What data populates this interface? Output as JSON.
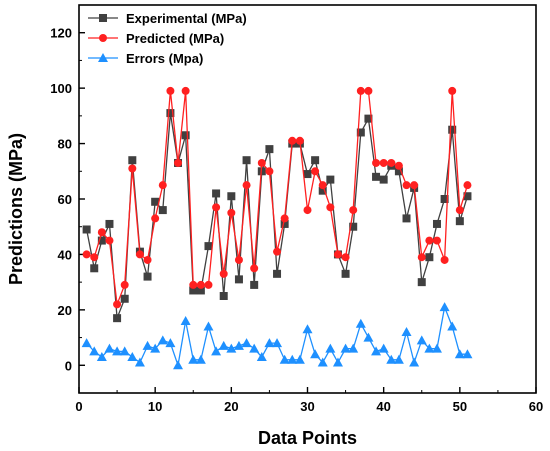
{
  "chart_data": {
    "type": "line",
    "xlabel": "Data Points",
    "ylabel": "Predictions (MPa)",
    "xlim": [
      0,
      60
    ],
    "ylim": [
      -10,
      130
    ],
    "xticks": [
      0,
      10,
      20,
      30,
      40,
      50,
      60
    ],
    "yticks": [
      0,
      20,
      40,
      60,
      80,
      100,
      120
    ],
    "grid": false,
    "legend_position": "top-left",
    "x": [
      1,
      2,
      3,
      4,
      5,
      6,
      7,
      8,
      9,
      10,
      11,
      12,
      13,
      14,
      15,
      16,
      17,
      18,
      19,
      20,
      21,
      22,
      23,
      24,
      25,
      26,
      27,
      28,
      29,
      30,
      31,
      32,
      33,
      34,
      35,
      36,
      37,
      38,
      39,
      40,
      41,
      42,
      43,
      44,
      45,
      46,
      47,
      48,
      49,
      50,
      51
    ],
    "series": [
      {
        "name": "Experimental (MPa)",
        "color": "#404040",
        "marker": "square",
        "values": [
          49,
          35,
          45,
          51,
          17,
          24,
          74,
          41,
          32,
          59,
          56,
          91,
          73,
          83,
          27,
          27,
          43,
          62,
          25,
          61,
          31,
          74,
          29,
          70,
          78,
          33,
          51,
          80,
          80,
          69,
          74,
          63,
          67,
          40,
          33,
          50,
          84,
          89,
          68,
          67,
          72,
          70,
          53,
          64,
          30,
          39,
          51,
          60,
          85,
          52,
          61
        ]
      },
      {
        "name": "Predicted (MPa)",
        "color": "#ff2020",
        "marker": "circle",
        "values": [
          40,
          39,
          48,
          45,
          22,
          29,
          71,
          40,
          38,
          53,
          65,
          99,
          73,
          99,
          29,
          29,
          29,
          57,
          33,
          55,
          38,
          65,
          35,
          73,
          70,
          41,
          53,
          81,
          81,
          56,
          70,
          65,
          57,
          40,
          39,
          56,
          99,
          99,
          73,
          73,
          73,
          72,
          65,
          65,
          39,
          45,
          45,
          38,
          99,
          56,
          65
        ]
      },
      {
        "name": "Errors (Mpa)",
        "color": "#1e90ff",
        "marker": "triangle",
        "values": [
          8,
          5,
          3,
          6,
          5,
          5,
          3,
          1,
          7,
          6,
          9,
          8,
          0,
          16,
          2,
          2,
          14,
          5,
          7,
          6,
          7,
          8,
          6,
          3,
          8,
          8,
          2,
          2,
          2,
          13,
          4,
          1,
          6,
          1,
          6,
          6,
          15,
          10,
          5,
          6,
          2,
          2,
          12,
          1,
          9,
          6,
          6,
          21,
          14,
          4,
          4
        ]
      }
    ]
  }
}
